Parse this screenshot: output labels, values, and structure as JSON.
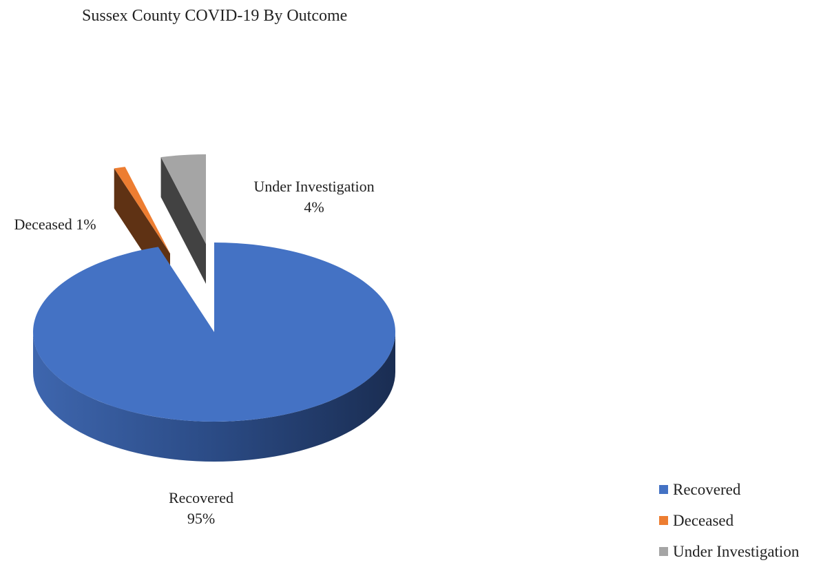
{
  "chart_data": {
    "type": "pie",
    "title": "Sussex County COVID-19 By Outcome",
    "three_d": true,
    "exploded": true,
    "slices": [
      {
        "label": "Recovered",
        "value": 95,
        "data_label": [
          "Recovered",
          "95%"
        ],
        "color": "#4472C4"
      },
      {
        "label": "Deceased",
        "value": 1,
        "data_label": [
          "Deceased 1%"
        ],
        "color": "#ED7D31"
      },
      {
        "label": "Under Investigation",
        "value": 4,
        "data_label": [
          "Under Investigation",
          "4%"
        ],
        "color": "#A5A5A5"
      }
    ],
    "legend": {
      "position": "bottom-right",
      "items": [
        "Recovered",
        "Deceased",
        "Under Investigation"
      ]
    }
  }
}
